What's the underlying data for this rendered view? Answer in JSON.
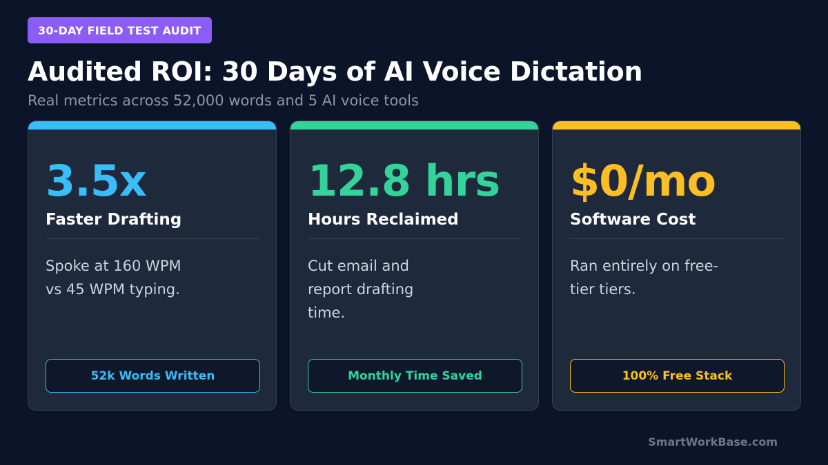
{
  "badge": {
    "text": "30-DAY FIELD TEST AUDIT"
  },
  "header": {
    "title": "Audited ROI: 30 Days of AI Voice Dictation",
    "subtitle": "Real metrics across 52,000 words and 5 AI voice tools"
  },
  "cards": [
    {
      "value": "3.5x",
      "label": "Faster Drafting",
      "description": "Spoke at 160 WPM vs 45 WPM typing.",
      "tag": "52k Words Written",
      "accent": "#38bdf8"
    },
    {
      "value": "12.8 hrs",
      "label": "Hours Reclaimed",
      "description": "Cut email and report drafting time.",
      "tag": "Monthly Time Saved",
      "accent": "#34d399"
    },
    {
      "value": "$0/mo",
      "label": "Software Cost",
      "description": "Ran entirely on free-tier tiers.",
      "tag": "100% Free Stack",
      "accent": "#fbbf24"
    }
  ],
  "colors": {
    "background": "#0c1429",
    "badge": "#8b5cf6",
    "card": "#1e293b"
  },
  "footer": {
    "text": "SmartWorkBase.com"
  }
}
